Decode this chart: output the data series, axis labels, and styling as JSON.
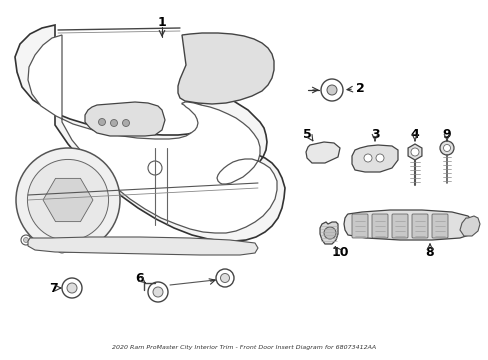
{
  "title": "2020 Ram ProMaster City Interior Trim - Front Door Insert Diagram for 68073412AA",
  "bg": "#ffffff",
  "lc": "#333333",
  "figsize": [
    4.89,
    3.6
  ],
  "dpi": 100
}
